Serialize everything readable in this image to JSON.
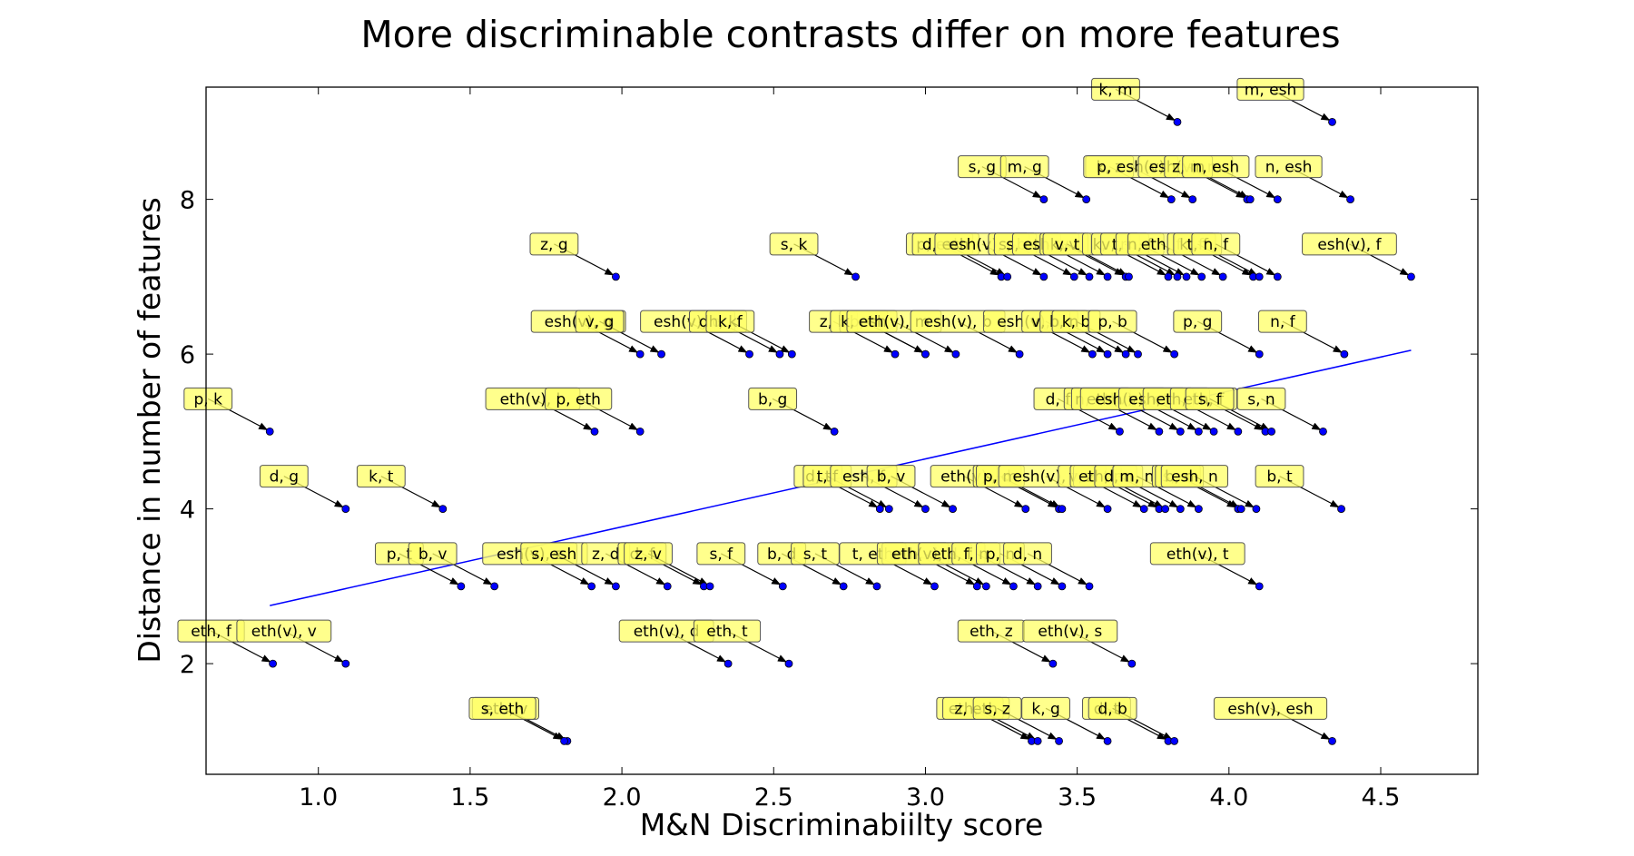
{
  "chart_data": {
    "type": "scatter",
    "title": "More discriminable contrasts differ on more features",
    "xlabel": "M&N Discriminabiilty score",
    "ylabel": "Distance in number of features",
    "xlim": [
      0.63,
      4.82
    ],
    "ylim": [
      0.57,
      9.45
    ],
    "x_ticks": [
      1.0,
      1.5,
      2.0,
      2.5,
      3.0,
      3.5,
      4.0,
      4.5
    ],
    "x_tick_labels": [
      "1.0",
      "1.5",
      "2.0",
      "2.5",
      "3.0",
      "3.5",
      "4.0",
      "4.5"
    ],
    "y_ticks": [
      2,
      4,
      6,
      8
    ],
    "y_tick_labels": [
      "2",
      "4",
      "6",
      "8"
    ],
    "grid": false,
    "point_color": "#0000ff",
    "annotation_color": "#ffff66",
    "fit_line": {
      "color": "#0000ff",
      "x": [
        0.84,
        4.6
      ],
      "y": [
        2.75,
        6.05
      ]
    },
    "points": [
      {
        "label": "k, m",
        "x": 3.83,
        "y": 9
      },
      {
        "label": "m, esh",
        "x": 4.34,
        "y": 9
      },
      {
        "label": "s, g",
        "x": 3.39,
        "y": 8
      },
      {
        "label": "m, g",
        "x": 3.53,
        "y": 8
      },
      {
        "label": "k, z",
        "x": 3.81,
        "y": 8
      },
      {
        "label": "p, esh(v)",
        "x": 3.88,
        "y": 8
      },
      {
        "label": "esh(v), m",
        "x": 4.06,
        "y": 8
      },
      {
        "label": "z, m",
        "x": 4.07,
        "y": 8
      },
      {
        "label": "n, esh",
        "x": 4.16,
        "y": 8
      },
      {
        "label": "n, esh",
        "x": 4.4,
        "y": 8
      },
      {
        "label": "z, g",
        "x": 1.98,
        "y": 7
      },
      {
        "label": "s, k",
        "x": 2.77,
        "y": 7
      },
      {
        "label": "p, esh",
        "x": 3.25,
        "y": 7
      },
      {
        "label": "d, esh",
        "x": 3.27,
        "y": 7
      },
      {
        "label": "esh(v), s",
        "x": 3.39,
        "y": 7
      },
      {
        "label": "s, b",
        "x": 3.49,
        "y": 7
      },
      {
        "label": "s, eth",
        "x": 3.54,
        "y": 7
      },
      {
        "label": "esh, v",
        "x": 3.6,
        "y": 7
      },
      {
        "label": "k, v",
        "x": 3.66,
        "y": 7
      },
      {
        "label": "v, t",
        "x": 3.67,
        "y": 7
      },
      {
        "label": "k, v",
        "x": 3.8,
        "y": 7
      },
      {
        "label": "v, n",
        "x": 3.83,
        "y": 7
      },
      {
        "label": "t, n",
        "x": 3.86,
        "y": 7
      },
      {
        "label": "n, f",
        "x": 3.91,
        "y": 7
      },
      {
        "label": "eth, f",
        "x": 3.98,
        "y": 7
      },
      {
        "label": "k, f",
        "x": 4.08,
        "y": 7
      },
      {
        "label": "t, f",
        "x": 4.1,
        "y": 7
      },
      {
        "label": "n, f",
        "x": 4.16,
        "y": 7
      },
      {
        "label": "esh(v), f",
        "x": 4.6,
        "y": 7
      },
      {
        "label": "esh(v), g",
        "x": 2.06,
        "y": 6
      },
      {
        "label": "v, g",
        "x": 2.13,
        "y": 6
      },
      {
        "label": "esh(v), d",
        "x": 2.42,
        "y": 6
      },
      {
        "label": "dh, k",
        "x": 2.52,
        "y": 6
      },
      {
        "label": "k, f",
        "x": 2.56,
        "y": 6
      },
      {
        "label": "z, b",
        "x": 2.9,
        "y": 6
      },
      {
        "label": "b, k",
        "x": 3.0,
        "y": 6
      },
      {
        "label": "k, esh",
        "x": 3.0,
        "y": 6
      },
      {
        "label": "eth(v), m",
        "x": 3.1,
        "y": 6
      },
      {
        "label": "esh(v), b",
        "x": 3.31,
        "y": 6
      },
      {
        "label": "esh(v), v",
        "x": 3.55,
        "y": 6
      },
      {
        "label": "v, b",
        "x": 3.6,
        "y": 6
      },
      {
        "label": "b, n",
        "x": 3.66,
        "y": 6
      },
      {
        "label": "k, b",
        "x": 3.7,
        "y": 6
      },
      {
        "label": "p, b",
        "x": 3.82,
        "y": 6
      },
      {
        "label": "p, g",
        "x": 4.1,
        "y": 6
      },
      {
        "label": "n, f",
        "x": 4.38,
        "y": 6
      },
      {
        "label": "p, k",
        "x": 0.84,
        "y": 5
      },
      {
        "label": "eth(v), b",
        "x": 1.91,
        "y": 5
      },
      {
        "label": "p, eth",
        "x": 2.06,
        "y": 5
      },
      {
        "label": "b, g",
        "x": 2.7,
        "y": 5
      },
      {
        "label": "d, f",
        "x": 3.64,
        "y": 5
      },
      {
        "label": "n, eth",
        "x": 3.77,
        "y": 5
      },
      {
        "label": "eth(v), s",
        "x": 3.84,
        "y": 5
      },
      {
        "label": "esh(v), eth",
        "x": 3.9,
        "y": 5
      },
      {
        "label": "esh, n",
        "x": 3.95,
        "y": 5
      },
      {
        "label": "eth, f",
        "x": 4.03,
        "y": 5
      },
      {
        "label": "eth, f",
        "x": 4.12,
        "y": 5
      },
      {
        "label": "s, f",
        "x": 4.14,
        "y": 5
      },
      {
        "label": "s, n",
        "x": 4.31,
        "y": 5
      },
      {
        "label": "d, g",
        "x": 1.09,
        "y": 4
      },
      {
        "label": "k, t",
        "x": 1.41,
        "y": 4
      },
      {
        "label": "d, t",
        "x": 2.85,
        "y": 4
      },
      {
        "label": "t, f",
        "x": 2.88,
        "y": 4
      },
      {
        "label": "esh, f",
        "x": 3.0,
        "y": 4
      },
      {
        "label": "b, v",
        "x": 3.09,
        "y": 4
      },
      {
        "label": "eth(v)",
        "x": 3.33,
        "y": 4
      },
      {
        "label": "s, d",
        "x": 3.44,
        "y": 4
      },
      {
        "label": "p, m",
        "x": 3.45,
        "y": 4
      },
      {
        "label": "esh(v), z",
        "x": 3.6,
        "y": 4
      },
      {
        "label": "v, z",
        "x": 3.72,
        "y": 4
      },
      {
        "label": "z, t",
        "x": 3.77,
        "y": 4
      },
      {
        "label": "eth, m",
        "x": 3.79,
        "y": 4
      },
      {
        "label": "d, n",
        "x": 3.84,
        "y": 4
      },
      {
        "label": "m, n",
        "x": 3.9,
        "y": 4
      },
      {
        "label": "s, n",
        "x": 4.03,
        "y": 4
      },
      {
        "label": "b, n",
        "x": 4.04,
        "y": 4
      },
      {
        "label": "esh, n",
        "x": 4.09,
        "y": 4
      },
      {
        "label": "b, t",
        "x": 4.37,
        "y": 4
      },
      {
        "label": "p, t",
        "x": 1.47,
        "y": 3
      },
      {
        "label": "b, v",
        "x": 1.58,
        "y": 3
      },
      {
        "label": "esh(v), z",
        "x": 1.9,
        "y": 3
      },
      {
        "label": "s, esh",
        "x": 1.98,
        "y": 3
      },
      {
        "label": "z, d",
        "x": 2.15,
        "y": 3
      },
      {
        "label": "d, f",
        "x": 2.27,
        "y": 3
      },
      {
        "label": "z, v",
        "x": 2.29,
        "y": 3
      },
      {
        "label": "s, f",
        "x": 2.53,
        "y": 3
      },
      {
        "label": "b, d",
        "x": 2.73,
        "y": 3
      },
      {
        "label": "s, t",
        "x": 2.84,
        "y": 3
      },
      {
        "label": "t, eth",
        "x": 3.03,
        "y": 3
      },
      {
        "label": "eth, d",
        "x": 3.17,
        "y": 3
      },
      {
        "label": "eth(v), d",
        "x": 3.2,
        "y": 3
      },
      {
        "label": "eth, f",
        "x": 3.29,
        "y": 3
      },
      {
        "label": "f, n",
        "x": 3.37,
        "y": 3
      },
      {
        "label": "p, n",
        "x": 3.45,
        "y": 3
      },
      {
        "label": "d, n",
        "x": 3.54,
        "y": 3
      },
      {
        "label": "eth(v), t",
        "x": 4.1,
        "y": 3
      },
      {
        "label": "eth, f",
        "x": 0.85,
        "y": 2
      },
      {
        "label": "eth(v), v",
        "x": 1.09,
        "y": 2
      },
      {
        "label": "eth(v), d",
        "x": 2.35,
        "y": 2
      },
      {
        "label": "eth, t",
        "x": 2.55,
        "y": 2
      },
      {
        "label": "eth, z",
        "x": 3.42,
        "y": 2
      },
      {
        "label": "eth(v), s",
        "x": 3.68,
        "y": 2
      },
      {
        "label": "eth, v",
        "x": 1.82,
        "y": 1
      },
      {
        "label": "s, eth",
        "x": 1.81,
        "y": 1
      },
      {
        "label": "eth, s",
        "x": 3.35,
        "y": 1
      },
      {
        "label": "z, eth",
        "x": 3.37,
        "y": 1
      },
      {
        "label": "s, z",
        "x": 3.44,
        "y": 1
      },
      {
        "label": "k, g",
        "x": 3.6,
        "y": 1
      },
      {
        "label": "d, t",
        "x": 3.8,
        "y": 1
      },
      {
        "label": "d, b",
        "x": 3.82,
        "y": 1
      },
      {
        "label": "esh(v), esh",
        "x": 4.34,
        "y": 1
      }
    ]
  }
}
